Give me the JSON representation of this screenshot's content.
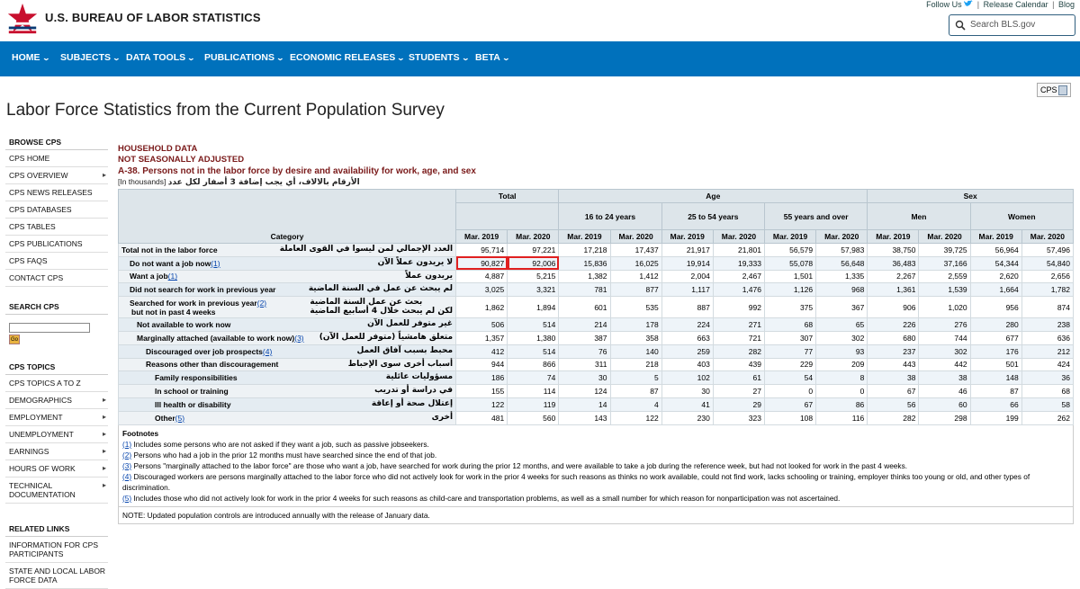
{
  "header": {
    "site_title": "U.S. BUREAU OF LABOR STATISTICS",
    "top_links": [
      "Follow Us",
      "Release Calendar",
      "Blog"
    ],
    "search_placeholder": "Search BLS.gov"
  },
  "nav": [
    "HOME",
    "SUBJECTS",
    "DATA TOOLS",
    "PUBLICATIONS",
    "ECONOMIC RELEASES",
    "STUDENTS",
    "BETA"
  ],
  "cps_button": "CPS",
  "page_title": "Labor Force Statistics from the Current Population Survey",
  "sidebar": {
    "browse_head": "BROWSE CPS",
    "browse_items": [
      "CPS HOME",
      "CPS OVERVIEW",
      "CPS NEWS RELEASES",
      "CPS DATABASES",
      "CPS TABLES",
      "CPS PUBLICATIONS",
      "CPS FAQS",
      "CONTACT CPS"
    ],
    "search_head": "SEARCH CPS",
    "go_label": "Go",
    "topics_head": "CPS TOPICS",
    "topics_items": [
      "CPS TOPICS A TO Z",
      "DEMOGRAPHICS",
      "EMPLOYMENT",
      "UNEMPLOYMENT",
      "EARNINGS",
      "HOURS OF WORK",
      "TECHNICAL DOCUMENTATION"
    ],
    "related_head": "RELATED LINKS",
    "related_items": [
      "INFORMATION FOR CPS PARTICIPANTS",
      "STATE AND LOCAL LABOR FORCE DATA"
    ]
  },
  "table_header": {
    "line1": "HOUSEHOLD DATA",
    "line2": "NOT SEASONALLY ADJUSTED",
    "title": "A-38. Persons not in the labor force by desire and availability for work, age, and sex",
    "arabic_note": "الأرقام بالالاف، أي يجب إضافة 3 أصفار لكل عدد",
    "thousands": "[In thousands]"
  },
  "columns": {
    "category": "Category",
    "total": "Total",
    "age": "Age",
    "sex": "Sex",
    "age_groups": [
      "16 to 24 years",
      "25 to 54 years",
      "55 years and over"
    ],
    "sex_groups": [
      "Men",
      "Women"
    ],
    "periods": [
      "Mar. 2019",
      "Mar. 2020"
    ]
  },
  "rows": [
    {
      "label": "Total not in the labor force",
      "ar": "العدد الإجمالي لمن ليسوا في القوى العاملة",
      "indent": 0,
      "vals": [
        "95,714",
        "97,221",
        "17,218",
        "17,437",
        "21,917",
        "21,801",
        "56,579",
        "57,983",
        "38,750",
        "39,725",
        "56,964",
        "57,496"
      ]
    },
    {
      "label": "Do not want a job now",
      "fn": "(1)",
      "ar": "لا يريدون عملاً الآن",
      "indent": 1,
      "vals": [
        "90,827",
        "92,006",
        "15,836",
        "16,025",
        "19,914",
        "19,333",
        "55,078",
        "56,648",
        "36,483",
        "37,166",
        "54,344",
        "54,840"
      ]
    },
    {
      "label": "Want a job",
      "fn": "(1)",
      "ar": "يريدون عملاً",
      "indent": 1,
      "vals": [
        "4,887",
        "5,215",
        "1,382",
        "1,412",
        "2,004",
        "2,467",
        "1,501",
        "1,335",
        "2,267",
        "2,559",
        "2,620",
        "2,656"
      ]
    },
    {
      "label": "Did not search for work in previous year",
      "ar": "لم يبحث عن عمل في السنة الماضية",
      "indent": 2,
      "vals": [
        "3,025",
        "3,321",
        "781",
        "877",
        "1,117",
        "1,476",
        "1,126",
        "968",
        "1,361",
        "1,539",
        "1,664",
        "1,782"
      ]
    },
    {
      "label": "Searched for work in previous year",
      "label2": "but not in past 4 weeks",
      "fn": "(2)",
      "ar": "بحث عن عمل السنة الماضية",
      "ar2": "لكن لم يبحث خلال 4 أسابيع الماضية",
      "indent": 2,
      "vals": [
        "1,862",
        "1,894",
        "601",
        "535",
        "887",
        "992",
        "375",
        "367",
        "906",
        "1,020",
        "956",
        "874"
      ]
    },
    {
      "label": "Not available to work now",
      "ar": "غير متوفر للعمل الآن",
      "indent": 3,
      "vals": [
        "506",
        "514",
        "214",
        "178",
        "224",
        "271",
        "68",
        "65",
        "226",
        "276",
        "280",
        "238"
      ]
    },
    {
      "label": "Marginally attached (available to work now)",
      "fn": "(3)",
      "ar": "متعلق هامشياً (متوفر للعمل الآن)",
      "indent": 3,
      "vals": [
        "1,357",
        "1,380",
        "387",
        "358",
        "663",
        "721",
        "307",
        "302",
        "680",
        "744",
        "677",
        "636"
      ]
    },
    {
      "label": "Discouraged over job prospects",
      "fn": "(4)",
      "ar": "محبط بسبب آفاق العمل",
      "indent": 4,
      "vals": [
        "412",
        "514",
        "76",
        "140",
        "259",
        "282",
        "77",
        "93",
        "237",
        "302",
        "176",
        "212"
      ]
    },
    {
      "label": "Reasons other than discouragement",
      "ar": "أسباب أخرى سوى الإحباط",
      "indent": 4,
      "vals": [
        "944",
        "866",
        "311",
        "218",
        "403",
        "439",
        "229",
        "209",
        "443",
        "442",
        "501",
        "424"
      ]
    },
    {
      "label": "Family responsibilities",
      "ar": "مسؤوليات عائلية",
      "indent": 5,
      "vals": [
        "186",
        "74",
        "30",
        "5",
        "102",
        "61",
        "54",
        "8",
        "38",
        "38",
        "148",
        "36"
      ]
    },
    {
      "label": "In school or training",
      "ar": "في دراسة أو تدريب",
      "indent": 5,
      "vals": [
        "155",
        "114",
        "124",
        "87",
        "30",
        "27",
        "0",
        "0",
        "67",
        "46",
        "87",
        "68"
      ]
    },
    {
      "label": "Ill health or disability",
      "ar": "إعتلال صحة أو إعاقة",
      "indent": 5,
      "vals": [
        "122",
        "119",
        "14",
        "4",
        "41",
        "29",
        "67",
        "86",
        "56",
        "60",
        "66",
        "58"
      ]
    },
    {
      "label": "Other",
      "fn": "(5)",
      "ar": "أخرى",
      "indent": 5,
      "vals": [
        "481",
        "560",
        "143",
        "122",
        "230",
        "323",
        "108",
        "116",
        "282",
        "298",
        "199",
        "262"
      ]
    }
  ],
  "footnotes": {
    "title": "Footnotes",
    "items": [
      {
        "n": "(1)",
        "text": " Includes some persons who are not asked if they want a job, such as passive jobseekers."
      },
      {
        "n": "(2)",
        "text": " Persons who had a job in the prior 12 months must have searched since the end of that job."
      },
      {
        "n": "(3)",
        "text": " Persons \"marginally attached to the labor force\" are those who want a job, have searched for work during the prior 12 months, and were available to take a job during the reference week, but had not looked for work in the past 4 weeks."
      },
      {
        "n": "(4)",
        "text": " Discouraged workers are persons marginally attached to the labor force who did not actively look for work in the prior 4 weeks for such reasons as thinks no work available, could not find work, lacks schooling or training, employer thinks too young or old, and other types of discrimination."
      },
      {
        "n": "(5)",
        "text": " Includes those who did not actively look for work in the prior 4 weeks for such reasons as child-care and transportation problems, as well as a small number for which reason for nonparticipation was not ascertained."
      }
    ]
  },
  "note": "NOTE: Updated population controls are introduced annually with the release of January data."
}
